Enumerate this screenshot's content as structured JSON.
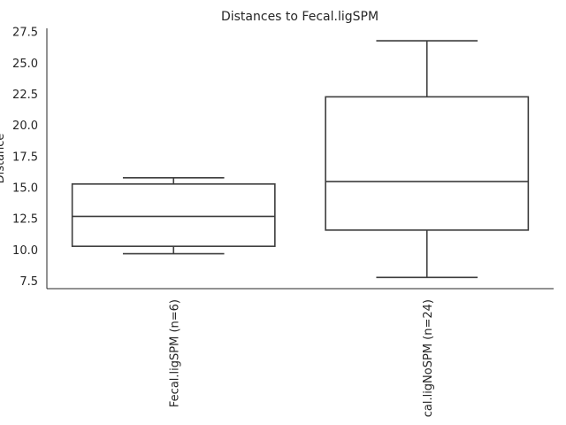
{
  "chart_data": {
    "type": "box",
    "title": "Distances to Fecal.ligSPM",
    "xlabel": "",
    "ylabel": "Distance",
    "ylim": [
      6.9,
      27.8
    ],
    "yticks": [
      7.5,
      10.0,
      12.5,
      15.0,
      17.5,
      20.0,
      22.5,
      25.0,
      27.5
    ],
    "ytick_labels": [
      "7.5",
      "10.0",
      "12.5",
      "15.0",
      "17.5",
      "20.0",
      "22.5",
      "25.0",
      "27.5"
    ],
    "categories": [
      "Fecal.ligSPM (n=6)",
      "cal.ligNoSPM (n=24)"
    ],
    "boxes": [
      {
        "whisker_low": 9.7,
        "q1": 10.3,
        "median": 12.7,
        "q3": 15.3,
        "whisker_high": 15.8
      },
      {
        "whisker_low": 7.8,
        "q1": 11.6,
        "median": 15.5,
        "q3": 22.3,
        "whisker_high": 26.8
      }
    ],
    "grid": false,
    "colors": {
      "box_edge": "#3d3d3d",
      "axis": "#262626",
      "box_fill": "#ffffff"
    }
  }
}
